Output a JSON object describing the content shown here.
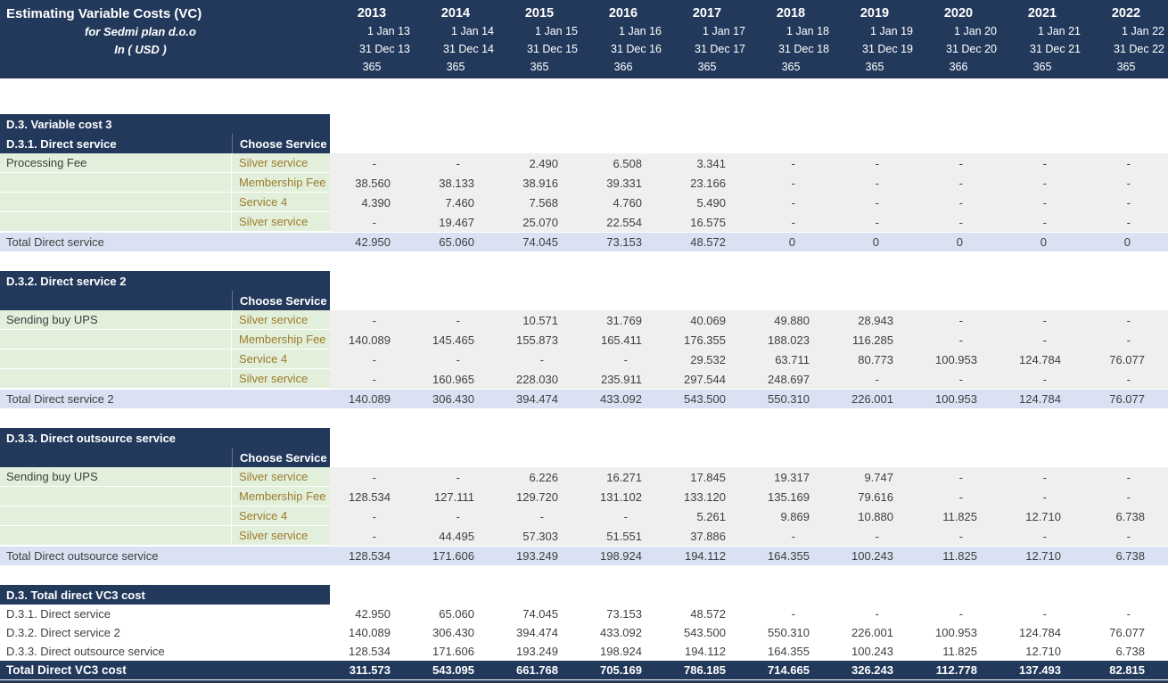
{
  "header": {
    "title": "Estimating Variable Costs (VC)",
    "subtitle": "for Sedmi plan d.o.o",
    "currency_line": "In ( USD )",
    "years": [
      "2013",
      "2014",
      "2015",
      "2016",
      "2017",
      "2018",
      "2019",
      "2020",
      "2021",
      "2022"
    ],
    "start_dates": [
      "1 Jan 13",
      "1 Jan 14",
      "1 Jan 15",
      "1 Jan 16",
      "1 Jan 17",
      "1 Jan 18",
      "1 Jan 19",
      "1 Jan 20",
      "1 Jan 21",
      "1 Jan 22"
    ],
    "end_dates": [
      "31 Dec 13",
      "31 Dec 14",
      "31 Dec 15",
      "31 Dec 16",
      "31 Dec 17",
      "31 Dec 18",
      "31 Dec 19",
      "31 Dec 20",
      "31 Dec 21",
      "31 Dec 22"
    ],
    "days": [
      "365",
      "365",
      "365",
      "366",
      "365",
      "365",
      "365",
      "366",
      "365",
      "365"
    ]
  },
  "colors": {
    "navy": "#23395c",
    "light_green": "#e2efda",
    "value_gray": "#efefef",
    "total_blue": "#d9e1f2",
    "service_text": "#9c7b2d",
    "body_text": "#3f3f3f"
  },
  "sections": [
    {
      "title_full": "D.3. Variable cost 3",
      "title_left": "D.3.1. Direct service",
      "chooser_label": "Choose Service",
      "rows": [
        {
          "label": "Processing Fee",
          "service": "Silver service",
          "values": [
            "-",
            "-",
            "2.490",
            "6.508",
            "3.341",
            "-",
            "-",
            "-",
            "-",
            "-"
          ]
        },
        {
          "label": "",
          "service": "Membership Fee",
          "values": [
            "38.560",
            "38.133",
            "38.916",
            "39.331",
            "23.166",
            "-",
            "-",
            "-",
            "-",
            "-"
          ]
        },
        {
          "label": "",
          "service": "Service 4",
          "values": [
            "4.390",
            "7.460",
            "7.568",
            "4.760",
            "5.490",
            "-",
            "-",
            "-",
            "-",
            "-"
          ]
        },
        {
          "label": "",
          "service": "Silver service",
          "values": [
            "-",
            "19.467",
            "25.070",
            "22.554",
            "16.575",
            "-",
            "-",
            "-",
            "-",
            "-"
          ]
        }
      ],
      "total": {
        "label": "Total Direct service",
        "values": [
          "42.950",
          "65.060",
          "74.045",
          "73.153",
          "48.572",
          "0",
          "0",
          "0",
          "0",
          "0"
        ]
      }
    },
    {
      "title_full": "D.3.2. Direct service 2",
      "title_left": "",
      "chooser_label": "Choose Service",
      "rows": [
        {
          "label": "Sending buy UPS",
          "service": "Silver service",
          "values": [
            "-",
            "-",
            "10.571",
            "31.769",
            "40.069",
            "49.880",
            "28.943",
            "-",
            "-",
            "-"
          ]
        },
        {
          "label": "",
          "service": "Membership Fee",
          "values": [
            "140.089",
            "145.465",
            "155.873",
            "165.411",
            "176.355",
            "188.023",
            "116.285",
            "-",
            "-",
            "-"
          ]
        },
        {
          "label": "",
          "service": "Service 4",
          "values": [
            "-",
            "-",
            "-",
            "-",
            "29.532",
            "63.711",
            "80.773",
            "100.953",
            "124.784",
            "76.077"
          ]
        },
        {
          "label": "",
          "service": "Silver service",
          "values": [
            "-",
            "160.965",
            "228.030",
            "235.911",
            "297.544",
            "248.697",
            "-",
            "-",
            "-",
            "-"
          ]
        }
      ],
      "total": {
        "label": "Total Direct service 2",
        "values": [
          "140.089",
          "306.430",
          "394.474",
          "433.092",
          "543.500",
          "550.310",
          "226.001",
          "100.953",
          "124.784",
          "76.077"
        ]
      }
    },
    {
      "title_full": "D.3.3. Direct outsource service",
      "title_left": "",
      "chooser_label": "Choose Service",
      "rows": [
        {
          "label": "Sending buy UPS",
          "service": "Silver service",
          "values": [
            "-",
            "-",
            "6.226",
            "16.271",
            "17.845",
            "19.317",
            "9.747",
            "-",
            "-",
            "-"
          ]
        },
        {
          "label": "",
          "service": "Membership Fee",
          "values": [
            "128.534",
            "127.111",
            "129.720",
            "131.102",
            "133.120",
            "135.169",
            "79.616",
            "-",
            "-",
            "-"
          ]
        },
        {
          "label": "",
          "service": "Service 4",
          "values": [
            "-",
            "-",
            "-",
            "-",
            "5.261",
            "9.869",
            "10.880",
            "11.825",
            "12.710",
            "6.738"
          ]
        },
        {
          "label": "",
          "service": "Silver service",
          "values": [
            "-",
            "44.495",
            "57.303",
            "51.551",
            "37.886",
            "-",
            "-",
            "-",
            "-",
            "-"
          ]
        }
      ],
      "total": {
        "label": "Total Direct outsource service",
        "values": [
          "128.534",
          "171.606",
          "193.249",
          "198.924",
          "194.112",
          "164.355",
          "100.243",
          "11.825",
          "12.710",
          "6.738"
        ]
      }
    }
  ],
  "summary": {
    "heading": "D.3. Total direct VC3 cost",
    "rows": [
      {
        "label": "D.3.1. Direct service",
        "values": [
          "42.950",
          "65.060",
          "74.045",
          "73.153",
          "48.572",
          "-",
          "-",
          "-",
          "-",
          "-"
        ]
      },
      {
        "label": "D.3.2. Direct service 2",
        "values": [
          "140.089",
          "306.430",
          "394.474",
          "433.092",
          "543.500",
          "550.310",
          "226.001",
          "100.953",
          "124.784",
          "76.077"
        ]
      },
      {
        "label": "D.3.3. Direct outsource service",
        "values": [
          "128.534",
          "171.606",
          "193.249",
          "198.924",
          "194.112",
          "164.355",
          "100.243",
          "11.825",
          "12.710",
          "6.738"
        ]
      }
    ],
    "total": {
      "label": "Total Direct VC3 cost",
      "values": [
        "311.573",
        "543.095",
        "661.768",
        "705.169",
        "786.185",
        "714.665",
        "326.243",
        "112.778",
        "137.493",
        "82.815"
      ]
    }
  }
}
